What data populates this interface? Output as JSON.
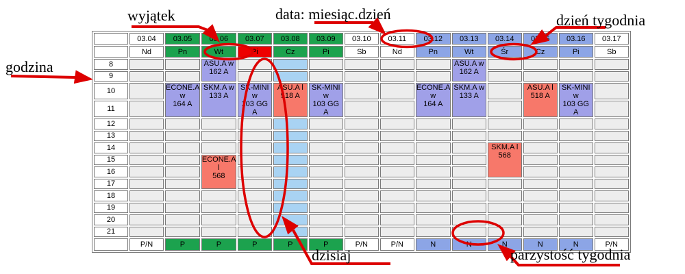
{
  "colors": {
    "even_week": "#1CA24E",
    "odd_week": "#8CA5E6",
    "weekend": "#FFFFFF",
    "today": "#A9D3F3",
    "exception_day": "#EE0000",
    "lecture": "#A0A0E8",
    "lab": "#F7786A",
    "empty_slot": "#EDEDED",
    "grid_border": "#7A7A7A",
    "annotation": "#DD0000"
  },
  "timetable": {
    "hours": [
      8,
      9,
      10,
      11,
      12,
      13,
      14,
      15,
      16,
      17,
      18,
      19,
      20,
      21
    ],
    "columns": [
      {
        "date": "03.04",
        "day": "Nd",
        "week": "weekend",
        "parity": "P/N",
        "entries": []
      },
      {
        "date": "03.05",
        "day": "Pn",
        "week": "even",
        "parity": "P",
        "entries": [
          {
            "start": 10,
            "span": 2,
            "kind": "lecture",
            "lines": [
              "ECONE.A w",
              "164 A"
            ]
          }
        ]
      },
      {
        "date": "03.06",
        "day": "Wt",
        "week": "even",
        "parity": "P",
        "entries": [
          {
            "start": 8,
            "span": 2,
            "kind": "lecture",
            "lines": [
              "ASU.A w",
              "162 A"
            ]
          },
          {
            "start": 10,
            "span": 2,
            "kind": "lecture",
            "lines": [
              "SKM.A w",
              "133 A"
            ]
          },
          {
            "start": 15,
            "span": 3,
            "kind": "lab",
            "lines": [
              "ECONE.A l",
              "568"
            ]
          }
        ]
      },
      {
        "date": "03.07",
        "day": "Pi",
        "week": "even",
        "parity": "P",
        "exception": true,
        "entries": [
          {
            "start": 10,
            "span": 2,
            "kind": "lecture",
            "lines": [
              "SK-MINI w",
              "103 GG A"
            ]
          }
        ]
      },
      {
        "date": "03.08",
        "day": "Cz",
        "week": "even",
        "parity": "P",
        "today": true,
        "entries": [
          {
            "start": 10,
            "span": 2,
            "kind": "lab",
            "lines": [
              "ASU.A l",
              "518 A"
            ]
          }
        ]
      },
      {
        "date": "03.09",
        "day": "Pi",
        "week": "even",
        "parity": "P",
        "entries": [
          {
            "start": 10,
            "span": 2,
            "kind": "lecture",
            "lines": [
              "SK-MINI w",
              "103 GG A"
            ]
          }
        ]
      },
      {
        "date": "03.10",
        "day": "Sb",
        "week": "weekend",
        "parity": "P/N",
        "entries": []
      },
      {
        "date": "03.11",
        "day": "Nd",
        "week": "weekend",
        "parity": "P/N",
        "entries": []
      },
      {
        "date": "03.12",
        "day": "Pn",
        "week": "odd",
        "parity": "N",
        "entries": [
          {
            "start": 10,
            "span": 2,
            "kind": "lecture",
            "lines": [
              "ECONE.A w",
              "164 A"
            ]
          }
        ]
      },
      {
        "date": "03.13",
        "day": "Wt",
        "week": "odd",
        "parity": "N",
        "entries": [
          {
            "start": 8,
            "span": 2,
            "kind": "lecture",
            "lines": [
              "ASU.A w",
              "162 A"
            ]
          },
          {
            "start": 10,
            "span": 2,
            "kind": "lecture",
            "lines": [
              "SKM.A w",
              "133 A"
            ]
          }
        ]
      },
      {
        "date": "03.14",
        "day": "Śr",
        "week": "odd",
        "parity": "N",
        "entries": [
          {
            "start": 14,
            "span": 3,
            "kind": "lab",
            "lines": [
              "SKM.A l",
              "568"
            ]
          }
        ]
      },
      {
        "date": "03.15",
        "day": "Cz",
        "week": "odd",
        "parity": "N",
        "entries": [
          {
            "start": 10,
            "span": 2,
            "kind": "lab",
            "lines": [
              "ASU.A l",
              "518 A"
            ]
          }
        ]
      },
      {
        "date": "03.16",
        "day": "Pi",
        "week": "odd",
        "parity": "N",
        "entries": [
          {
            "start": 10,
            "span": 2,
            "kind": "lecture",
            "lines": [
              "SK-MINI w",
              "103 GG A"
            ]
          }
        ]
      },
      {
        "date": "03.17",
        "day": "Sb",
        "week": "weekend",
        "parity": "P/N",
        "entries": []
      }
    ]
  },
  "annotations": {
    "exception": {
      "label": "wyjątek"
    },
    "date_format": {
      "label": "data: miesiąc.dzień"
    },
    "weekday": {
      "label": "dzień tygodnia"
    },
    "hour": {
      "label": "godzina"
    },
    "today": {
      "label": "dzisiaj"
    },
    "week_parity": {
      "label": "parzystość tygodnia"
    }
  }
}
